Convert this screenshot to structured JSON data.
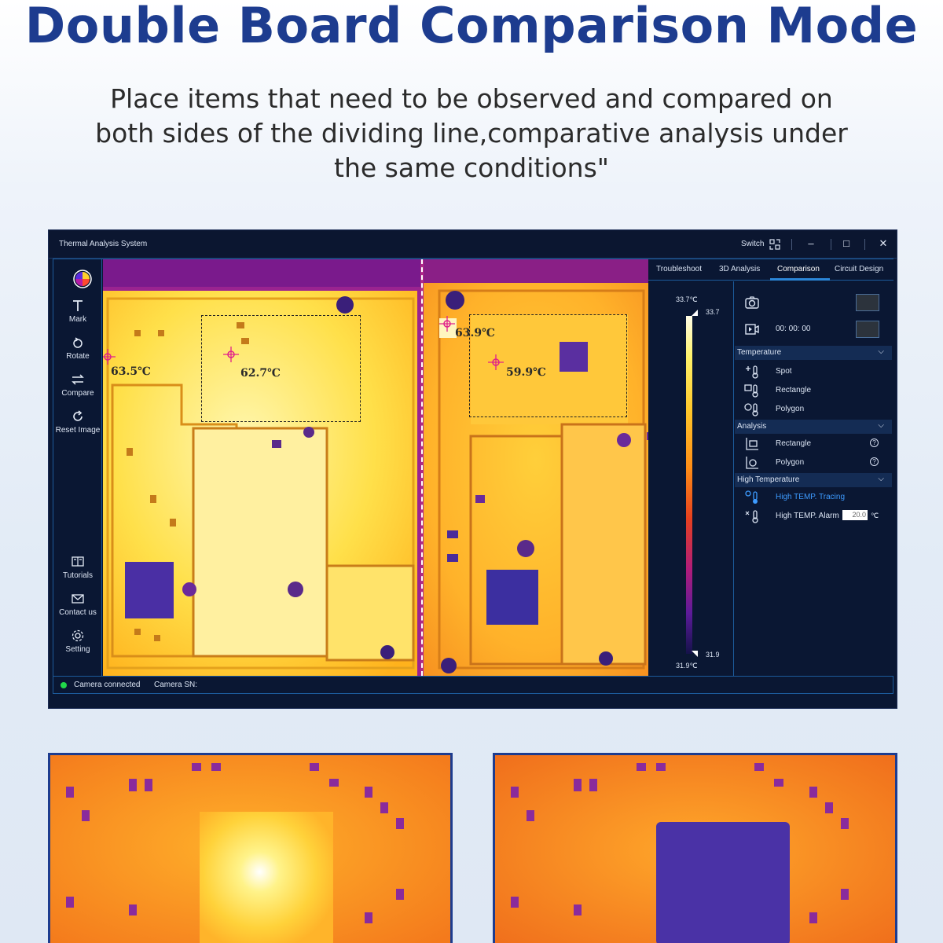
{
  "header": {
    "title": "Double Board Comparison Mode",
    "subtitle_lines": [
      "Place items that need to be observed and compared on",
      "both sides of the dividing line,comparative analysis under",
      "the same conditions\""
    ]
  },
  "window": {
    "title": "Thermal Analysis System",
    "switch_label": "Switch"
  },
  "sidebar": {
    "items": [
      {
        "label": "Mark",
        "icon": "text-icon"
      },
      {
        "label": "Rotate",
        "icon": "rotate-icon"
      },
      {
        "label": "Compare",
        "icon": "compare-icon"
      },
      {
        "label": "Reset Image",
        "icon": "reset-icon"
      }
    ],
    "bottom_items": [
      {
        "label": "Tutorials",
        "icon": "tutorials-icon"
      },
      {
        "label": "Contact us",
        "icon": "mail-icon"
      },
      {
        "label": "Setting",
        "icon": "gear-icon"
      }
    ]
  },
  "thermal": {
    "left_labels": [
      "63.5℃",
      "62.7℃"
    ],
    "right_labels": [
      "63.9℃",
      "59.9℃"
    ]
  },
  "panel": {
    "tabs": [
      "Troubleshoot",
      "3D Analysis",
      "Comparison",
      "Circuit Design"
    ],
    "active_tab": "Comparison",
    "scale": {
      "max_label": "33.7℃",
      "max_marker": "33.7",
      "min_marker": "31.9",
      "min_label": "31.9℃"
    },
    "record_time": "00: 00: 00",
    "sections": {
      "temperature": {
        "title": "Temperature",
        "items": [
          "Spot",
          "Rectangle",
          "Polygon"
        ]
      },
      "analysis": {
        "title": "Analysis",
        "items": [
          "Rectangle",
          "Polygon"
        ]
      },
      "high_temperature": {
        "title": "High Temperature",
        "tracing": "High TEMP. Tracing",
        "alarm": "High TEMP. Alarm",
        "alarm_value": "20.0",
        "unit": "℃"
      }
    }
  },
  "status": {
    "camera": "Camera connected",
    "sn": "Camera SN:"
  },
  "colors": {
    "title_blue": "#1d3c8f",
    "tracing_blue": "#3d9bff",
    "accent": "#2b86d8"
  }
}
